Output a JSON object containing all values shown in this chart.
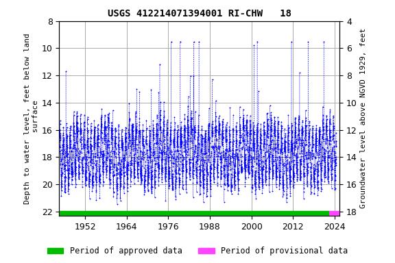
{
  "title": "USGS 412214071394001 RI-CHW   18",
  "ylabel_left": "Depth to water level, feet below land\n surface",
  "ylabel_right": "Groundwater level above NGVD 1929, feet",
  "ylim_left": [
    8,
    22.3
  ],
  "ylim_right": [
    4,
    18.3
  ],
  "yticks_left": [
    8,
    10,
    12,
    14,
    16,
    18,
    20,
    22
  ],
  "yticks_right": [
    18,
    16,
    14,
    12,
    10,
    8,
    6,
    4
  ],
  "yticks_right_labels": [
    "18",
    "16",
    "14",
    "12",
    "10",
    "8",
    "6",
    "4"
  ],
  "xlim": [
    1944.5,
    2025.5
  ],
  "xticks": [
    1952,
    1964,
    1976,
    1988,
    2000,
    2012,
    2024
  ],
  "data_color": "#0000ff",
  "approved_color": "#00bb00",
  "provisional_color": "#ff44ff",
  "background_color": "#ffffff",
  "grid_color": "#aaaaaa",
  "title_fontsize": 10,
  "axis_fontsize": 8,
  "tick_fontsize": 9,
  "legend_fontsize": 8.5,
  "approved_start": 1944.5,
  "approved_end": 2022.5,
  "provisional_start": 2022.5,
  "provisional_end": 2025.5,
  "seed": 42,
  "data_start_year": 1944,
  "data_end_year": 2025,
  "readings_per_year": 52
}
